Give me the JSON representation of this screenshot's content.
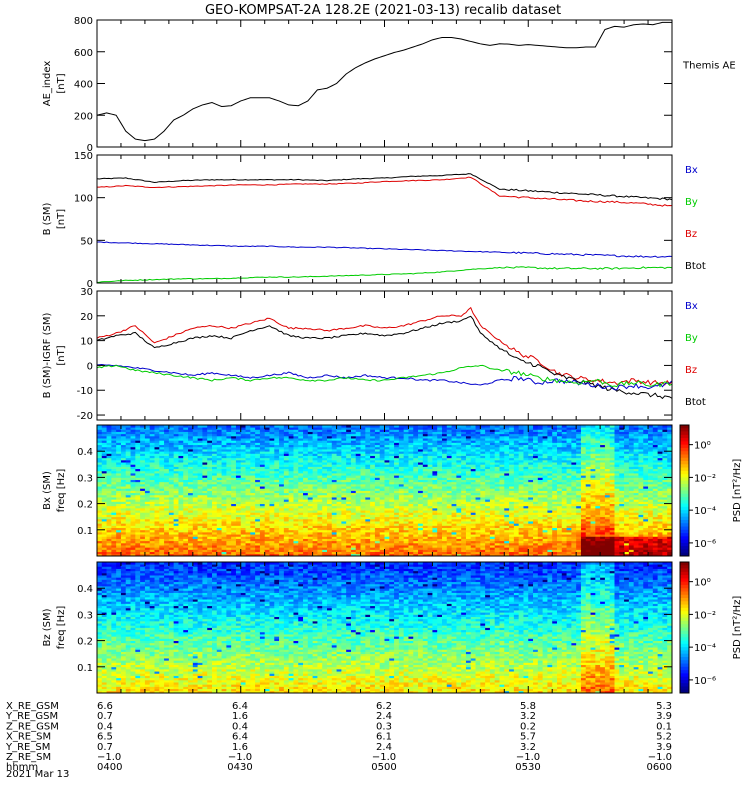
{
  "title": "GEO-KOMPSAT-2A 128.2E (2021-03-13) recalib dataset",
  "colors": {
    "black": "#000000",
    "red": "#dd0000",
    "blue": "#0000cc",
    "green": "#00cc00"
  },
  "chart_data": [
    {
      "type": "line",
      "id": "ae",
      "ylabel": "AE_index",
      "yunit": "[nT]",
      "ylim": [
        0,
        800
      ],
      "yticks": [
        0,
        200,
        400,
        600,
        800
      ],
      "legend": [
        {
          "name": "Themis AE",
          "color": "#000000"
        }
      ],
      "series": [
        {
          "name": "Themis AE",
          "color": "#000000",
          "x": [
            0,
            2,
            4,
            6,
            8,
            10,
            12,
            14,
            16,
            18,
            20,
            22,
            24,
            26,
            28,
            30,
            32,
            34,
            36,
            38,
            40,
            42,
            44,
            46,
            48,
            50,
            52,
            54,
            56,
            58,
            60,
            62,
            64,
            66,
            68,
            70,
            72,
            74,
            76,
            78,
            80,
            82,
            84,
            86,
            88,
            90,
            92,
            94,
            96,
            98,
            100,
            102,
            104,
            106,
            108,
            110,
            112,
            114,
            116,
            118,
            120
          ],
          "y": [
            200,
            215,
            200,
            100,
            50,
            40,
            50,
            100,
            170,
            200,
            240,
            265,
            280,
            255,
            260,
            290,
            310,
            310,
            310,
            290,
            265,
            260,
            290,
            360,
            370,
            400,
            460,
            500,
            530,
            555,
            575,
            595,
            610,
            630,
            650,
            675,
            690,
            690,
            680,
            665,
            650,
            640,
            650,
            648,
            640,
            645,
            640,
            635,
            630,
            625,
            625,
            630,
            630,
            740,
            760,
            755,
            770,
            775,
            770,
            785,
            785
          ]
        }
      ]
    },
    {
      "type": "line",
      "id": "bsm",
      "ylabel": "B (SM)",
      "yunit": "[nT]",
      "ylim": [
        0,
        150
      ],
      "yticks": [
        0,
        50,
        100,
        150
      ],
      "legend": [
        {
          "name": "Bx",
          "color": "#0000cc"
        },
        {
          "name": "By",
          "color": "#00cc00"
        },
        {
          "name": "Bz",
          "color": "#dd0000"
        },
        {
          "name": "Btot",
          "color": "#000000"
        }
      ],
      "series": [
        {
          "name": "Btot",
          "color": "#000000",
          "x": [
            0,
            6,
            12,
            18,
            24,
            30,
            36,
            42,
            48,
            54,
            60,
            66,
            72,
            78,
            84,
            90,
            96,
            102,
            108,
            114,
            120
          ],
          "y": [
            122,
            123,
            118,
            120,
            121,
            121,
            121,
            121,
            120,
            122,
            123,
            125,
            126,
            128,
            110,
            108,
            106,
            104,
            102,
            100,
            98
          ]
        },
        {
          "name": "Bz",
          "color": "#dd0000",
          "x": [
            0,
            6,
            12,
            18,
            24,
            30,
            36,
            42,
            48,
            54,
            60,
            66,
            72,
            78,
            84,
            90,
            96,
            102,
            108,
            114,
            120
          ],
          "y": [
            112,
            114,
            112,
            113,
            114,
            115,
            115,
            116,
            116,
            117,
            119,
            120,
            121,
            124,
            102,
            100,
            98,
            96,
            95,
            93,
            90
          ]
        },
        {
          "name": "Bx",
          "color": "#0000cc",
          "x": [
            0,
            6,
            12,
            18,
            24,
            30,
            36,
            42,
            48,
            54,
            60,
            66,
            72,
            78,
            84,
            90,
            96,
            102,
            108,
            114,
            120
          ],
          "y": [
            48,
            47,
            46,
            45,
            44,
            43,
            43,
            42,
            42,
            41,
            40,
            39,
            38,
            37,
            36,
            35,
            34,
            33,
            32,
            31,
            31
          ]
        },
        {
          "name": "By",
          "color": "#00cc00",
          "x": [
            0,
            6,
            12,
            18,
            24,
            30,
            36,
            42,
            48,
            54,
            60,
            66,
            72,
            78,
            84,
            90,
            96,
            102,
            108,
            114,
            120
          ],
          "y": [
            1,
            3,
            4,
            5,
            5,
            6,
            7,
            7,
            8,
            9,
            10,
            11,
            13,
            16,
            18,
            18,
            17,
            17,
            17,
            18,
            18
          ]
        }
      ]
    },
    {
      "type": "line",
      "id": "dbsm",
      "ylabel": "B (SM)-IGRF (SM)",
      "yunit": "[nT]",
      "ylim": [
        -22,
        30
      ],
      "yticks": [
        -20,
        -10,
        0,
        10,
        20,
        30
      ],
      "legend": [
        {
          "name": "Bx",
          "color": "#0000cc"
        },
        {
          "name": "By",
          "color": "#00cc00"
        },
        {
          "name": "Bz",
          "color": "#dd0000"
        },
        {
          "name": "Btot",
          "color": "#000000"
        }
      ],
      "series": [
        {
          "name": "Bz",
          "color": "#dd0000",
          "x": [
            0,
            4,
            8,
            12,
            16,
            20,
            24,
            28,
            32,
            36,
            40,
            44,
            48,
            52,
            56,
            60,
            64,
            68,
            72,
            76,
            78,
            80,
            84,
            88,
            92,
            96,
            100,
            104,
            108,
            112,
            116,
            120
          ],
          "y": [
            11,
            13,
            16,
            9,
            12,
            15,
            16,
            15,
            17,
            19,
            15,
            15,
            14,
            15,
            16,
            15,
            16,
            18,
            20,
            20,
            23,
            16,
            10,
            5,
            2,
            -3,
            -5,
            -6,
            -7,
            -6,
            -7,
            -7
          ]
        },
        {
          "name": "Btot",
          "color": "#000000",
          "x": [
            0,
            4,
            8,
            12,
            16,
            20,
            24,
            28,
            32,
            36,
            40,
            44,
            48,
            52,
            56,
            60,
            64,
            68,
            72,
            76,
            78,
            80,
            84,
            88,
            92,
            96,
            100,
            104,
            108,
            112,
            116,
            120
          ],
          "y": [
            10,
            12,
            13,
            7,
            9,
            11,
            12,
            11,
            14,
            16,
            12,
            11,
            11,
            12,
            13,
            12,
            13,
            15,
            17,
            18,
            20,
            13,
            7,
            2,
            0,
            -4,
            -6,
            -8,
            -10,
            -11,
            -12,
            -13
          ]
        },
        {
          "name": "Bx",
          "color": "#0000cc",
          "x": [
            0,
            4,
            8,
            12,
            16,
            20,
            24,
            28,
            32,
            36,
            40,
            44,
            48,
            52,
            56,
            60,
            64,
            68,
            72,
            76,
            80,
            84,
            88,
            92,
            96,
            100,
            104,
            108,
            112,
            116,
            120
          ],
          "y": [
            0,
            0,
            -1,
            -2,
            -3,
            -4,
            -3,
            -4,
            -5,
            -4,
            -3,
            -5,
            -4,
            -5,
            -4,
            -5,
            -5,
            -6,
            -6,
            -7,
            -8,
            -6,
            -5,
            -7,
            -6,
            -7,
            -8,
            -9,
            -8,
            -9,
            -7
          ]
        },
        {
          "name": "By",
          "color": "#00cc00",
          "x": [
            0,
            4,
            8,
            12,
            16,
            20,
            24,
            28,
            32,
            36,
            40,
            44,
            48,
            52,
            56,
            60,
            64,
            68,
            72,
            76,
            80,
            84,
            88,
            92,
            96,
            100,
            104,
            108,
            112,
            116,
            120
          ],
          "y": [
            -1,
            0,
            -2,
            -3,
            -4,
            -5,
            -6,
            -5,
            -6,
            -5,
            -5,
            -6,
            -6,
            -5,
            -6,
            -6,
            -5,
            -4,
            -3,
            -1,
            0,
            -2,
            -3,
            -5,
            -6,
            -7,
            -6,
            -8,
            -7,
            -8,
            -7
          ]
        }
      ]
    },
    {
      "type": "heatmap",
      "id": "bxspec",
      "ylabel": "Bx (SM)",
      "yunit": "freq [Hz]",
      "ylim": [
        0,
        0.5
      ],
      "yticks": [
        0.1,
        0.2,
        0.3,
        0.4
      ],
      "colorbar": {
        "label": "PSD",
        "unit": "[nT²/Hz]",
        "ticks": [
          "10⁰",
          "10⁻²",
          "10⁻⁴",
          "10⁻⁶"
        ]
      }
    },
    {
      "type": "heatmap",
      "id": "bzspec",
      "ylabel": "Bz (SM)",
      "yunit": "freq [Hz]",
      "ylim": [
        0,
        0.5
      ],
      "yticks": [
        0.1,
        0.2,
        0.3,
        0.4
      ],
      "colorbar": {
        "label": "PSD",
        "unit": "[nT²/Hz]",
        "ticks": [
          "10⁰",
          "10⁻²",
          "10⁻⁴",
          "10⁻⁶"
        ]
      }
    }
  ],
  "ephemeris": {
    "rows": [
      {
        "label": "X_RE_GSM",
        "values": [
          "6.6",
          "6.4",
          "6.2",
          "5.8",
          "5.3"
        ]
      },
      {
        "label": "Y_RE_GSM",
        "values": [
          "0.7",
          "1.6",
          "2.4",
          "3.2",
          "3.9"
        ]
      },
      {
        "label": "Z_RE_GSM",
        "values": [
          "0.4",
          "0.4",
          "0.3",
          "0.2",
          "0.1"
        ]
      },
      {
        "label": "X_RE_SM",
        "values": [
          "6.5",
          "6.4",
          "6.1",
          "5.7",
          "5.2"
        ]
      },
      {
        "label": "Y_RE_SM",
        "values": [
          "0.7",
          "1.6",
          "2.4",
          "3.2",
          "3.9"
        ]
      },
      {
        "label": "Z_RE_SM",
        "values": [
          "−1.0",
          "−1.0",
          "−1.0",
          "−1.0",
          "−1.0"
        ]
      },
      {
        "label": "hhmm",
        "values": [
          "0400",
          "0430",
          "0500",
          "0530",
          "0600"
        ]
      }
    ],
    "date": "2021 Mar 13"
  }
}
